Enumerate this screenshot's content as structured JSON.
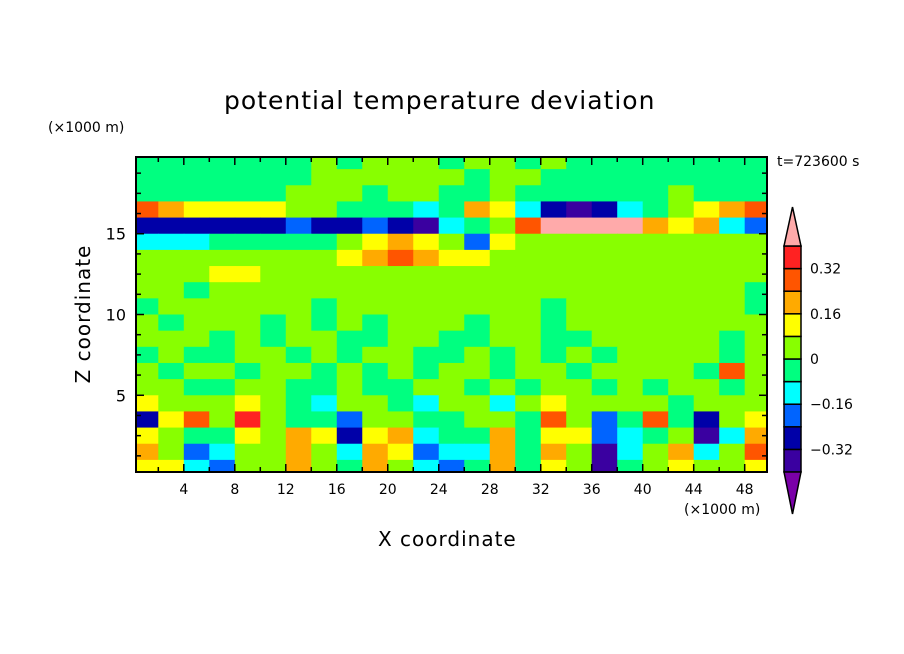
{
  "chart_data": {
    "type": "heatmap",
    "title": "potential temperature deviation",
    "xlabel": "X coordinate",
    "ylabel": "Z coordinate",
    "x_unit": "(×1000 m)",
    "y_unit": "(×1000 m)",
    "time_label": "t=723600 s",
    "xlim": [
      0.25,
      49.75
    ],
    "ylim": [
      0.25,
      19.75
    ],
    "x_ticks": [
      "4",
      "8",
      "12",
      "16",
      "20",
      "24",
      "28",
      "32",
      "36",
      "40",
      "44",
      "48"
    ],
    "x_tick_values": [
      4,
      8,
      12,
      16,
      20,
      24,
      28,
      32,
      36,
      40,
      44,
      48
    ],
    "y_ticks": [
      "5",
      "10",
      "15"
    ],
    "y_tick_values": [
      5,
      10,
      15
    ],
    "grid_x": [
      1,
      3,
      5,
      7,
      9,
      11,
      13,
      15,
      17,
      19,
      21,
      23,
      25,
      27,
      29,
      31,
      33,
      35,
      37,
      39,
      41,
      43,
      45,
      47,
      49
    ],
    "grid_z": [
      19.5,
      18.5,
      17.5,
      16.5,
      15.5,
      14.5,
      13.5,
      12.5,
      11.5,
      10.5,
      9.5,
      8.5,
      7.5,
      6.5,
      5.5,
      4.5,
      3.5,
      2.5,
      1.5,
      0.5
    ],
    "values": [
      [
        -0.04,
        -0.04,
        -0.04,
        -0.04,
        -0.04,
        -0.04,
        -0.04,
        0.04,
        -0.04,
        0.04,
        0.04,
        0.04,
        -0.04,
        0.04,
        0.04,
        -0.04,
        0.04,
        -0.04,
        -0.04,
        -0.04,
        -0.04,
        -0.04,
        -0.04,
        -0.04,
        -0.04
      ],
      [
        -0.04,
        -0.04,
        -0.04,
        -0.04,
        -0.04,
        -0.04,
        -0.04,
        0.04,
        0.04,
        0.04,
        0.04,
        0.04,
        0.04,
        -0.04,
        0.04,
        0.04,
        -0.04,
        -0.04,
        -0.04,
        -0.04,
        -0.04,
        -0.04,
        -0.04,
        -0.04,
        -0.04
      ],
      [
        -0.04,
        -0.04,
        -0.04,
        -0.04,
        -0.04,
        -0.04,
        0.04,
        0.04,
        0.04,
        -0.04,
        0.04,
        0.04,
        -0.04,
        -0.04,
        0.04,
        -0.04,
        -0.04,
        -0.04,
        -0.04,
        -0.04,
        -0.04,
        0.04,
        -0.04,
        -0.04,
        -0.04
      ],
      [
        0.3,
        0.2,
        0.12,
        0.12,
        0.12,
        0.12,
        0.04,
        0.04,
        -0.04,
        -0.04,
        -0.04,
        -0.12,
        -0.04,
        0.2,
        0.12,
        -0.12,
        -0.3,
        -0.36,
        -0.3,
        -0.12,
        -0.04,
        0.04,
        0.12,
        0.2,
        0.3
      ],
      [
        -0.3,
        -0.3,
        -0.3,
        -0.3,
        -0.3,
        -0.28,
        -0.2,
        -0.28,
        -0.28,
        -0.2,
        -0.28,
        -0.38,
        -0.12,
        -0.04,
        0.04,
        0.25,
        0.45,
        0.45,
        0.45,
        0.45,
        0.2,
        0.12,
        0.2,
        -0.12,
        -0.2
      ],
      [
        -0.12,
        -0.12,
        -0.12,
        -0.04,
        -0.04,
        -0.04,
        -0.04,
        -0.04,
        0.04,
        0.12,
        0.2,
        0.12,
        0.04,
        -0.2,
        0.12,
        0.04,
        0.04,
        0.04,
        0.04,
        0.04,
        0.04,
        0.04,
        0.04,
        0.04,
        0.04
      ],
      [
        0.04,
        0.04,
        0.04,
        0.04,
        0.04,
        0.04,
        0.04,
        0.04,
        0.12,
        0.2,
        0.28,
        0.2,
        0.12,
        0.12,
        0.04,
        0.04,
        0.04,
        0.04,
        0.04,
        0.04,
        0.04,
        0.04,
        0.04,
        0.04,
        0.04
      ],
      [
        0.04,
        0.04,
        0.04,
        0.12,
        0.12,
        0.04,
        0.04,
        0.04,
        0.04,
        0.04,
        0.04,
        0.04,
        0.04,
        0.04,
        0.04,
        0.04,
        0.04,
        0.04,
        0.04,
        0.04,
        0.04,
        0.04,
        0.04,
        0.04,
        0.04
      ],
      [
        0.04,
        0.04,
        -0.04,
        0.04,
        0.04,
        0.04,
        0.04,
        0.04,
        0.04,
        0.04,
        0.04,
        0.04,
        0.04,
        0.04,
        0.04,
        0.04,
        0.04,
        0.04,
        0.04,
        0.04,
        0.04,
        0.04,
        0.04,
        0.04,
        -0.04
      ],
      [
        -0.04,
        0.04,
        0.04,
        0.04,
        0.04,
        0.04,
        0.04,
        -0.04,
        0.04,
        0.04,
        0.04,
        0.04,
        0.04,
        0.04,
        0.04,
        0.04,
        -0.04,
        0.04,
        0.04,
        0.04,
        0.04,
        0.04,
        0.04,
        0.04,
        -0.04
      ],
      [
        0.04,
        -0.04,
        0.04,
        0.04,
        0.04,
        -0.04,
        0.04,
        -0.04,
        0.04,
        -0.04,
        0.04,
        0.04,
        0.04,
        -0.04,
        0.04,
        0.04,
        -0.04,
        0.04,
        0.04,
        0.04,
        0.04,
        0.04,
        0.04,
        0.04,
        0.04
      ],
      [
        0.04,
        0.04,
        0.04,
        -0.04,
        0.04,
        -0.04,
        0.04,
        0.04,
        -0.04,
        -0.04,
        0.04,
        0.04,
        -0.04,
        -0.04,
        0.04,
        0.04,
        -0.04,
        -0.04,
        0.04,
        0.04,
        0.04,
        0.04,
        0.04,
        -0.04,
        0.04
      ],
      [
        -0.04,
        0.04,
        -0.04,
        -0.04,
        0.04,
        0.04,
        -0.04,
        0.04,
        -0.04,
        0.04,
        0.04,
        -0.04,
        -0.04,
        0.04,
        -0.04,
        0.04,
        -0.04,
        0.04,
        -0.04,
        0.04,
        0.04,
        0.04,
        0.04,
        -0.04,
        0.04
      ],
      [
        0.04,
        -0.04,
        0.04,
        0.04,
        -0.04,
        0.04,
        0.04,
        -0.04,
        0.04,
        -0.04,
        0.04,
        -0.04,
        0.04,
        0.04,
        -0.04,
        0.04,
        0.04,
        -0.04,
        0.04,
        0.04,
        0.04,
        0.04,
        -0.04,
        0.28,
        0.04
      ],
      [
        0.04,
        0.04,
        -0.04,
        -0.04,
        0.04,
        0.04,
        -0.04,
        -0.04,
        0.04,
        -0.04,
        -0.04,
        0.04,
        0.04,
        -0.04,
        0.04,
        -0.04,
        0.04,
        0.04,
        -0.04,
        0.04,
        -0.04,
        0.04,
        0.04,
        -0.04,
        0.04
      ],
      [
        0.12,
        0.04,
        0.04,
        0.04,
        0.12,
        0.04,
        -0.04,
        -0.12,
        0.04,
        0.04,
        -0.04,
        -0.12,
        0.04,
        0.04,
        -0.12,
        0.04,
        0.12,
        0.04,
        0.04,
        0.04,
        0.04,
        -0.04,
        0.04,
        0.04,
        0.04
      ],
      [
        -0.28,
        0.12,
        0.28,
        0.04,
        0.36,
        0.04,
        -0.04,
        -0.04,
        -0.2,
        0.04,
        0.04,
        -0.04,
        -0.04,
        0.04,
        0.04,
        -0.04,
        0.28,
        0.04,
        -0.2,
        -0.04,
        0.28,
        -0.04,
        -0.28,
        0.04,
        0.12
      ],
      [
        0.12,
        0.04,
        -0.04,
        -0.04,
        0.12,
        0.04,
        0.2,
        0.12,
        -0.28,
        0.12,
        0.2,
        -0.12,
        -0.04,
        -0.04,
        0.2,
        -0.04,
        0.12,
        0.12,
        -0.2,
        -0.12,
        -0.04,
        0.04,
        -0.36,
        -0.12,
        0.2
      ],
      [
        0.2,
        0.04,
        -0.2,
        -0.12,
        0.04,
        0.04,
        0.2,
        0.04,
        -0.12,
        0.2,
        0.12,
        -0.2,
        -0.12,
        -0.12,
        0.2,
        -0.04,
        0.2,
        0.04,
        -0.36,
        -0.12,
        0.04,
        0.2,
        -0.12,
        0.04,
        0.28
      ],
      [
        0.12,
        0.12,
        -0.12,
        -0.2,
        0.04,
        0.04,
        0.2,
        0.04,
        -0.04,
        0.2,
        0.04,
        -0.12,
        -0.2,
        -0.04,
        0.2,
        -0.04,
        0.12,
        0.04,
        -0.36,
        -0.04,
        0.04,
        0.12,
        0.04,
        0.04,
        0.12
      ]
    ],
    "levels": [
      -0.4,
      -0.32,
      -0.24,
      -0.16,
      -0.08,
      0,
      0.08,
      0.16,
      0.24,
      0.32,
      0.4
    ],
    "colors": [
      "#7a00a8",
      "#3a00a0",
      "#0000a8",
      "#0064ff",
      "#00ffff",
      "#00ff80",
      "#88ff00",
      "#ffff00",
      "#ffaa00",
      "#ff5500",
      "#ff2222",
      "#ffaaaa"
    ],
    "colorbar_labels": [
      "0.32",
      "0.16",
      "0",
      "−0.16",
      "−0.32"
    ],
    "colorbar_label_values": [
      0.32,
      0.16,
      0,
      -0.16,
      -0.32
    ]
  }
}
